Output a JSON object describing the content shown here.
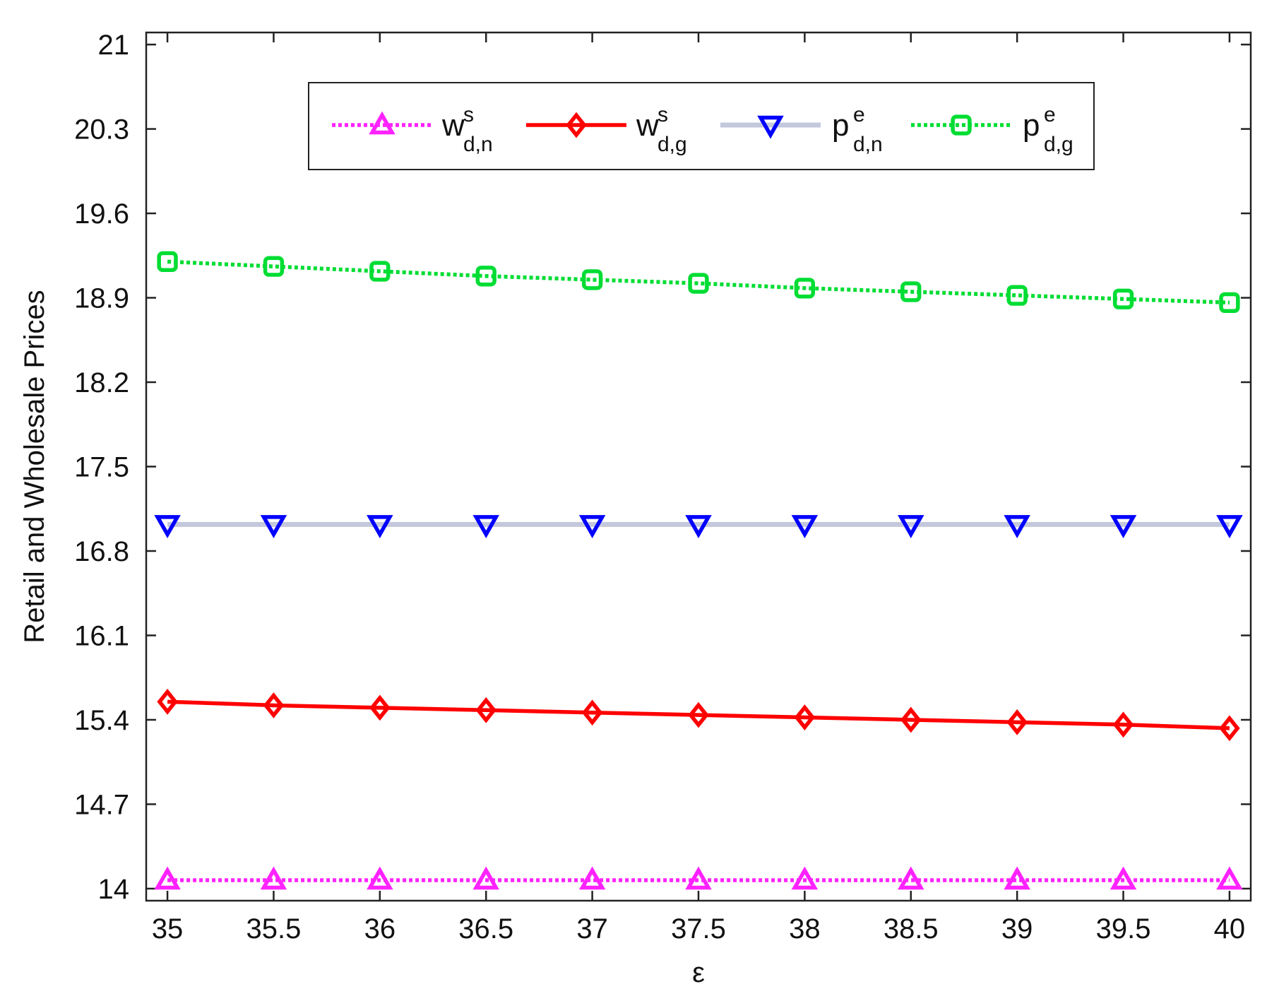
{
  "chart_data": {
    "type": "line",
    "title": "",
    "xlabel": "ε",
    "ylabel": "Retail and Wholesale Prices",
    "xlim": [
      34.9,
      40.1
    ],
    "ylim": [
      13.9,
      21.1
    ],
    "x": [
      35,
      35.5,
      36,
      36.5,
      37,
      37.5,
      38,
      38.5,
      39,
      39.5,
      40
    ],
    "x_ticks": [
      35,
      35.5,
      36,
      36.5,
      37,
      37.5,
      38,
      38.5,
      39,
      39.5,
      40
    ],
    "x_tick_labels": [
      "35",
      "35.5",
      "36",
      "36.5",
      "37",
      "37.5",
      "38",
      "38.5",
      "39",
      "39.5",
      "40"
    ],
    "y_ticks": [
      14,
      14.7,
      15.4,
      16.1,
      16.8,
      17.5,
      18.2,
      18.9,
      19.6,
      20.3,
      21
    ],
    "y_tick_labels": [
      "14",
      "14.7",
      "15.4",
      "16.1",
      "16.8",
      "17.5",
      "18.2",
      "18.9",
      "19.6",
      "20.3",
      "21"
    ],
    "grid": false,
    "legend_position": "top-center",
    "series": [
      {
        "key": "w_dn",
        "label_base": "w",
        "label_sup": "s",
        "label_sub": "d,n",
        "color": "#ff22ff",
        "line_style": "dotted",
        "marker": "triangle-up",
        "values": [
          14.07,
          14.07,
          14.07,
          14.07,
          14.07,
          14.07,
          14.07,
          14.07,
          14.07,
          14.07,
          14.07
        ]
      },
      {
        "key": "w_dg",
        "label_base": "w",
        "label_sup": "s",
        "label_sub": "d,g",
        "color": "#ff0000",
        "line_style": "solid",
        "marker": "diamond",
        "values": [
          15.55,
          15.52,
          15.5,
          15.48,
          15.46,
          15.44,
          15.42,
          15.4,
          15.38,
          15.36,
          15.33
        ]
      },
      {
        "key": "p_dn",
        "label_base": "p",
        "label_sup": "e",
        "label_sub": "d,n",
        "color": "#0000ff",
        "line_color": "#c4c8dc",
        "line_style": "solid",
        "marker": "triangle-down",
        "values": [
          17.02,
          17.02,
          17.02,
          17.02,
          17.02,
          17.02,
          17.02,
          17.02,
          17.02,
          17.02,
          17.02
        ]
      },
      {
        "key": "p_dg",
        "label_base": "p",
        "label_sup": "e",
        "label_sub": "d,g",
        "color": "#00dd33",
        "line_style": "dotted",
        "marker": "square",
        "values": [
          19.2,
          19.16,
          19.12,
          19.08,
          19.05,
          19.02,
          18.98,
          18.95,
          18.92,
          18.89,
          18.86
        ]
      }
    ]
  }
}
